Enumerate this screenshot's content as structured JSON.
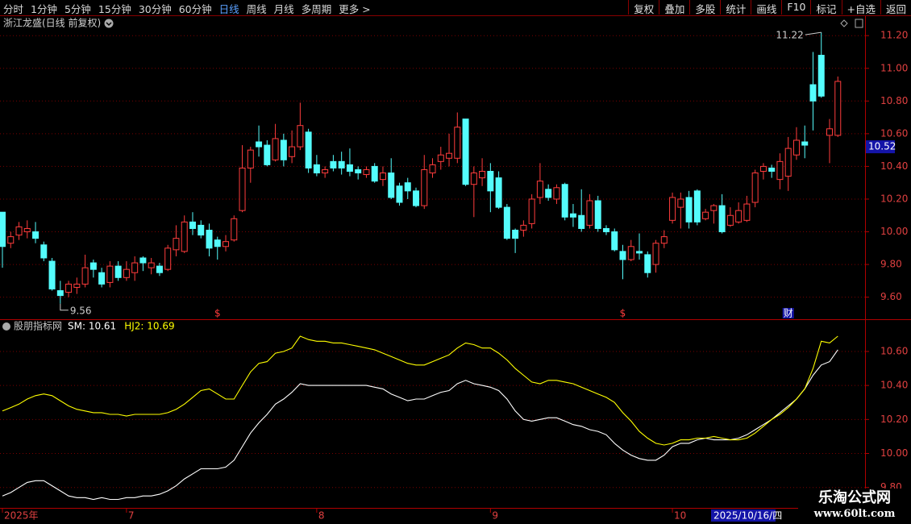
{
  "toolbar": {
    "left": [
      "分时",
      "1分钟",
      "5分钟",
      "15分钟",
      "30分钟",
      "60分钟",
      "日线",
      "周线",
      "月线",
      "多周期",
      "更多 >"
    ],
    "right": [
      "复权",
      "叠加",
      "多股",
      "统计",
      "画线",
      "F10",
      "标记",
      "+自选",
      "返回"
    ]
  },
  "chart_data": [
    {
      "type": "candlestick",
      "title": "浙江龙盛(日线 前复权)",
      "categories": [
        "2025年",
        null,
        null,
        null,
        null,
        null,
        null,
        null,
        null,
        null,
        null,
        null,
        null,
        null,
        null,
        "7",
        null,
        null,
        null,
        null,
        null,
        null,
        null,
        null,
        null,
        null,
        null,
        null,
        null,
        null,
        null,
        null,
        null,
        null,
        null,
        null,
        null,
        null,
        "8",
        null,
        null,
        null,
        null,
        null,
        null,
        null,
        null,
        null,
        null,
        null,
        null,
        null,
        null,
        null,
        null,
        null,
        null,
        null,
        null,
        "9",
        null,
        null,
        null,
        null,
        null,
        null,
        null,
        null,
        null,
        null,
        null,
        null,
        null,
        null,
        null,
        null,
        null,
        null,
        null,
        null,
        null,
        "10",
        null,
        null,
        null,
        null,
        null,
        null,
        null,
        null,
        null,
        null,
        null,
        null,
        null,
        null,
        null,
        null,
        null,
        null,
        null,
        null
      ],
      "open": [
        10.12,
        9.93,
        9.98,
        10.0,
        10.0,
        9.92,
        9.82,
        9.64,
        9.63,
        9.66,
        9.68,
        9.81,
        9.75,
        9.69,
        9.79,
        9.72,
        9.75,
        9.84,
        9.78,
        9.79,
        9.77,
        9.89,
        9.88,
        10.06,
        10.04,
        10.01,
        9.95,
        9.91,
        9.95,
        10.13,
        10.39,
        10.55,
        10.53,
        10.44,
        10.56,
        10.46,
        10.52,
        10.61,
        10.41,
        10.36,
        10.43,
        10.43,
        10.41,
        10.38,
        10.35,
        10.4,
        10.32,
        10.36,
        10.28,
        10.3,
        10.25,
        10.16,
        10.36,
        10.43,
        10.45,
        10.45,
        10.69,
        10.29,
        10.33,
        10.37,
        10.33,
        10.15,
        10.01,
        10.01,
        10.05,
        10.21,
        10.26,
        10.2,
        10.29,
        10.11,
        10.1,
        10.04,
        10.19,
        10.02,
        10.0,
        9.88,
        9.83,
        9.88,
        9.86,
        9.8,
        9.93,
        10.07,
        10.15,
        10.21,
        10.25,
        10.08,
        10.13,
        10.16,
        10.04,
        10.06,
        10.07,
        10.18,
        10.37,
        10.39,
        10.32,
        10.34,
        10.47,
        10.55,
        10.9,
        11.08,
        10.59,
        10.59
      ],
      "high": [
        10.12,
        10.0,
        10.06,
        10.07,
        10.06,
        9.94,
        9.84,
        9.7,
        9.7,
        9.72,
        9.86,
        9.83,
        9.78,
        9.82,
        9.82,
        9.82,
        9.85,
        9.85,
        9.84,
        9.81,
        9.92,
        10.04,
        10.1,
        10.12,
        10.07,
        10.05,
        9.97,
        9.98,
        10.1,
        10.53,
        10.52,
        10.65,
        10.56,
        10.66,
        10.6,
        10.62,
        10.79,
        10.63,
        10.47,
        10.4,
        10.47,
        10.49,
        10.51,
        10.4,
        10.4,
        10.42,
        10.4,
        10.45,
        10.3,
        10.33,
        10.27,
        10.47,
        10.45,
        10.52,
        10.6,
        10.73,
        10.69,
        10.4,
        10.45,
        10.42,
        10.37,
        10.17,
        10.02,
        10.07,
        10.23,
        10.42,
        10.29,
        10.29,
        10.3,
        10.17,
        10.26,
        10.23,
        10.22,
        10.04,
        10.02,
        9.92,
        9.95,
        9.99,
        9.88,
        9.95,
        10.01,
        10.24,
        10.24,
        10.25,
        10.26,
        10.14,
        10.17,
        10.23,
        10.15,
        10.18,
        10.22,
        10.38,
        10.42,
        10.41,
        10.48,
        10.58,
        10.64,
        10.65,
        11.1,
        11.22,
        10.69,
        10.95
      ],
      "low": [
        9.78,
        9.9,
        9.95,
        9.96,
        9.93,
        9.82,
        9.64,
        9.56,
        9.6,
        9.62,
        9.66,
        9.72,
        9.66,
        9.66,
        9.7,
        9.7,
        9.7,
        9.76,
        9.74,
        9.73,
        9.76,
        9.85,
        9.87,
        9.98,
        9.96,
        9.85,
        9.83,
        9.88,
        9.94,
        10.12,
        10.3,
        10.46,
        10.4,
        10.43,
        10.4,
        10.42,
        10.5,
        10.36,
        10.34,
        10.33,
        10.37,
        10.35,
        10.34,
        10.32,
        10.33,
        10.3,
        10.28,
        10.2,
        10.16,
        10.2,
        10.15,
        10.14,
        10.33,
        10.38,
        10.4,
        10.42,
        10.28,
        10.09,
        10.28,
        10.12,
        10.14,
        9.95,
        9.87,
        9.97,
        10.02,
        10.17,
        10.19,
        10.17,
        10.07,
        10.03,
        10.0,
        10.02,
        10.0,
        9.98,
        9.88,
        9.71,
        9.82,
        9.83,
        9.72,
        9.75,
        9.9,
        10.05,
        10.02,
        10.02,
        10.04,
        10.07,
        10.05,
        9.99,
        10.03,
        10.05,
        10.06,
        10.15,
        10.32,
        10.33,
        10.26,
        10.25,
        10.44,
        10.45,
        10.62,
        10.82,
        10.42,
        10.58
      ],
      "close": [
        9.91,
        9.97,
        10.03,
        10.02,
        9.96,
        9.84,
        9.65,
        9.61,
        9.68,
        9.68,
        9.78,
        9.77,
        9.68,
        9.79,
        9.72,
        9.77,
        9.81,
        9.81,
        9.81,
        9.75,
        9.9,
        9.96,
        10.06,
        10.02,
        9.98,
        9.9,
        9.91,
        9.94,
        10.08,
        10.39,
        10.5,
        10.52,
        10.41,
        10.57,
        10.44,
        10.52,
        10.65,
        10.39,
        10.36,
        10.38,
        10.39,
        10.39,
        10.37,
        10.36,
        10.38,
        10.31,
        10.36,
        10.21,
        10.18,
        10.25,
        10.16,
        10.38,
        10.41,
        10.47,
        10.48,
        10.64,
        10.29,
        10.36,
        10.37,
        10.25,
        10.15,
        9.96,
        9.96,
        10.04,
        10.2,
        10.31,
        10.21,
        10.27,
        10.09,
        10.09,
        10.02,
        10.19,
        10.02,
        10.0,
        9.89,
        9.83,
        9.91,
        9.87,
        9.75,
        9.93,
        9.97,
        10.21,
        10.2,
        10.06,
        10.06,
        10.12,
        10.16,
        10.0,
        10.1,
        10.13,
        10.17,
        10.36,
        10.4,
        10.37,
        10.43,
        10.51,
        10.56,
        10.53,
        10.8,
        10.83,
        10.63,
        10.92
      ],
      "up_color": "#ff3c3c",
      "down_color": "#54fcfc",
      "ylim": [
        9.47,
        11.27
      ],
      "yticks": [
        {
          "value": 9.6,
          "label": "9.60"
        },
        {
          "value": 9.8,
          "label": "9.80"
        },
        {
          "value": 10.0,
          "label": "10.00"
        },
        {
          "value": 10.2,
          "label": "10.20"
        },
        {
          "value": 10.4,
          "label": "10.40"
        },
        {
          "value": 10.6,
          "label": "10.60"
        },
        {
          "value": 10.8,
          "label": "10.80"
        },
        {
          "value": 11.0,
          "label": "11.00"
        },
        {
          "value": 11.2,
          "label": "11.20"
        }
      ],
      "grid": true,
      "high_label": 11.22,
      "low_label": 9.56,
      "price_marker": 10.52,
      "events": [
        "$",
        "$",
        "财"
      ],
      "cursor_date": "2025/10/16/四"
    },
    {
      "type": "line",
      "title": "股朋指标网",
      "series": [
        {
          "name": "SM: 10.61",
          "color": "#ffffff",
          "values": [
            9.75,
            9.77,
            9.8,
            9.83,
            9.84,
            9.84,
            9.81,
            9.78,
            9.75,
            9.74,
            9.74,
            9.73,
            9.74,
            9.73,
            9.73,
            9.74,
            9.74,
            9.75,
            9.75,
            9.76,
            9.78,
            9.81,
            9.85,
            9.88,
            9.91,
            9.91,
            9.91,
            9.92,
            9.96,
            10.04,
            10.12,
            10.18,
            10.23,
            10.29,
            10.32,
            10.36,
            10.41,
            10.4,
            10.4,
            10.4,
            10.4,
            10.4,
            10.4,
            10.4,
            10.4,
            10.39,
            10.38,
            10.35,
            10.33,
            10.31,
            10.32,
            10.32,
            10.34,
            10.36,
            10.37,
            10.41,
            10.43,
            10.41,
            10.4,
            10.39,
            10.37,
            10.32,
            10.25,
            10.2,
            10.19,
            10.2,
            10.21,
            10.21,
            10.19,
            10.17,
            10.16,
            10.14,
            10.13,
            10.11,
            10.06,
            10.02,
            9.99,
            9.97,
            9.96,
            9.96,
            9.99,
            10.04,
            10.06,
            10.06,
            10.08,
            10.09,
            10.08,
            10.08,
            10.08,
            10.09,
            10.11,
            10.14,
            10.17,
            10.2,
            10.24,
            10.28,
            10.32,
            10.38,
            10.46,
            10.52,
            10.54,
            10.61
          ]
        },
        {
          "name": "HJ2: 10.69",
          "color": "#ffff00",
          "values": [
            10.25,
            10.27,
            10.29,
            10.32,
            10.34,
            10.35,
            10.34,
            10.31,
            10.28,
            10.26,
            10.25,
            10.24,
            10.24,
            10.23,
            10.23,
            10.22,
            10.23,
            10.23,
            10.23,
            10.23,
            10.24,
            10.26,
            10.29,
            10.33,
            10.37,
            10.38,
            10.35,
            10.32,
            10.32,
            10.4,
            10.48,
            10.53,
            10.54,
            10.59,
            10.6,
            10.62,
            10.69,
            10.67,
            10.66,
            10.66,
            10.65,
            10.65,
            10.64,
            10.63,
            10.62,
            10.61,
            10.59,
            10.57,
            10.55,
            10.53,
            10.52,
            10.52,
            10.54,
            10.56,
            10.58,
            10.62,
            10.65,
            10.64,
            10.62,
            10.62,
            10.59,
            10.55,
            10.5,
            10.46,
            10.42,
            10.41,
            10.43,
            10.43,
            10.42,
            10.41,
            10.39,
            10.37,
            10.35,
            10.33,
            10.3,
            10.24,
            10.19,
            10.13,
            10.09,
            10.06,
            10.05,
            10.06,
            10.08,
            10.08,
            10.09,
            10.09,
            10.1,
            10.09,
            10.08,
            10.08,
            10.09,
            10.12,
            10.16,
            10.2,
            10.23,
            10.27,
            10.32,
            10.38,
            10.5,
            10.66,
            10.65,
            10.69
          ]
        }
      ],
      "ylim": [
        9.68,
        10.78
      ],
      "yticks": [
        {
          "value": 9.8,
          "label": "9.80"
        },
        {
          "value": 10.0,
          "label": "10.00"
        },
        {
          "value": 10.2,
          "label": "10.20"
        },
        {
          "value": 10.4,
          "label": "10.40"
        },
        {
          "value": 10.6,
          "label": "10.60"
        }
      ],
      "grid": true
    }
  ],
  "watermark": {
    "name": "乐淘公式网",
    "url": "www.60lt.com"
  }
}
